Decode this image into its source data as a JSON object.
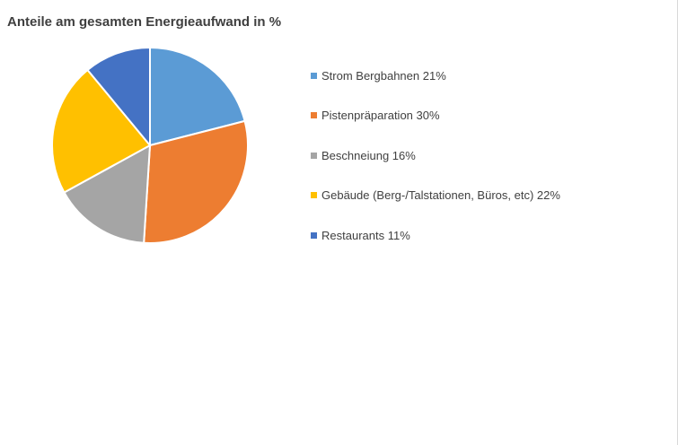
{
  "chart_data": {
    "type": "pie",
    "title": "Anteile am gesamten Energieaufwand in %",
    "legend_position": "right",
    "slices": [
      {
        "label": "Strom Bergbahnen 21%",
        "value": 21,
        "color": "#5b9bd5"
      },
      {
        "label": "Pistenpräparation 30%",
        "value": 30,
        "color": "#ed7d31"
      },
      {
        "label": "Beschneiung 16%",
        "value": 16,
        "color": "#a5a5a5"
      },
      {
        "label": "Gebäude (Berg-/Talstationen, Büros, etc) 22%",
        "value": 22,
        "color": "#ffc000"
      },
      {
        "label": "Restaurants 11%",
        "value": 11,
        "color": "#4472c4"
      }
    ]
  }
}
